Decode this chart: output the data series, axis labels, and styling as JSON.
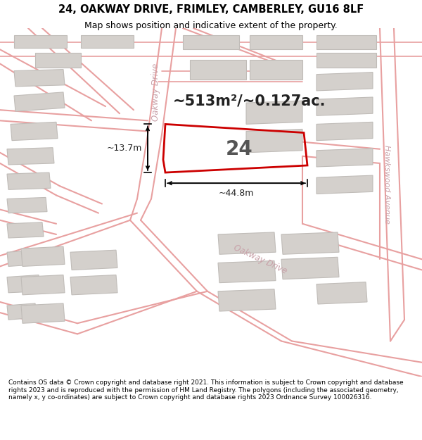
{
  "title": "24, OAKWAY DRIVE, FRIMLEY, CAMBERLEY, GU16 8LF",
  "subtitle": "Map shows position and indicative extent of the property.",
  "area_text": "~513m²/~0.127ac.",
  "label_24": "24",
  "dim_width": "~44.8m",
  "dim_height": "~13.7m",
  "footer": "Contains OS data © Crown copyright and database right 2021. This information is subject to Crown copyright and database rights 2023 and is reproduced with the permission of HM Land Registry. The polygons (including the associated geometry, namely x, y co-ordinates) are subject to Crown copyright and database rights 2023 Ordnance Survey 100026316.",
  "bg_color": "#ffffff",
  "road_line_color": "#e8a0a0",
  "building_color": "#d4d0cc",
  "building_edge_color": "#c0bcb8",
  "highlight_color": "#cc0000",
  "road_label_color": "#c8a0a8",
  "title_color": "#000000",
  "footer_color": "#000000",
  "footer_bg": "#ffffff",
  "dim_color": "#000000"
}
